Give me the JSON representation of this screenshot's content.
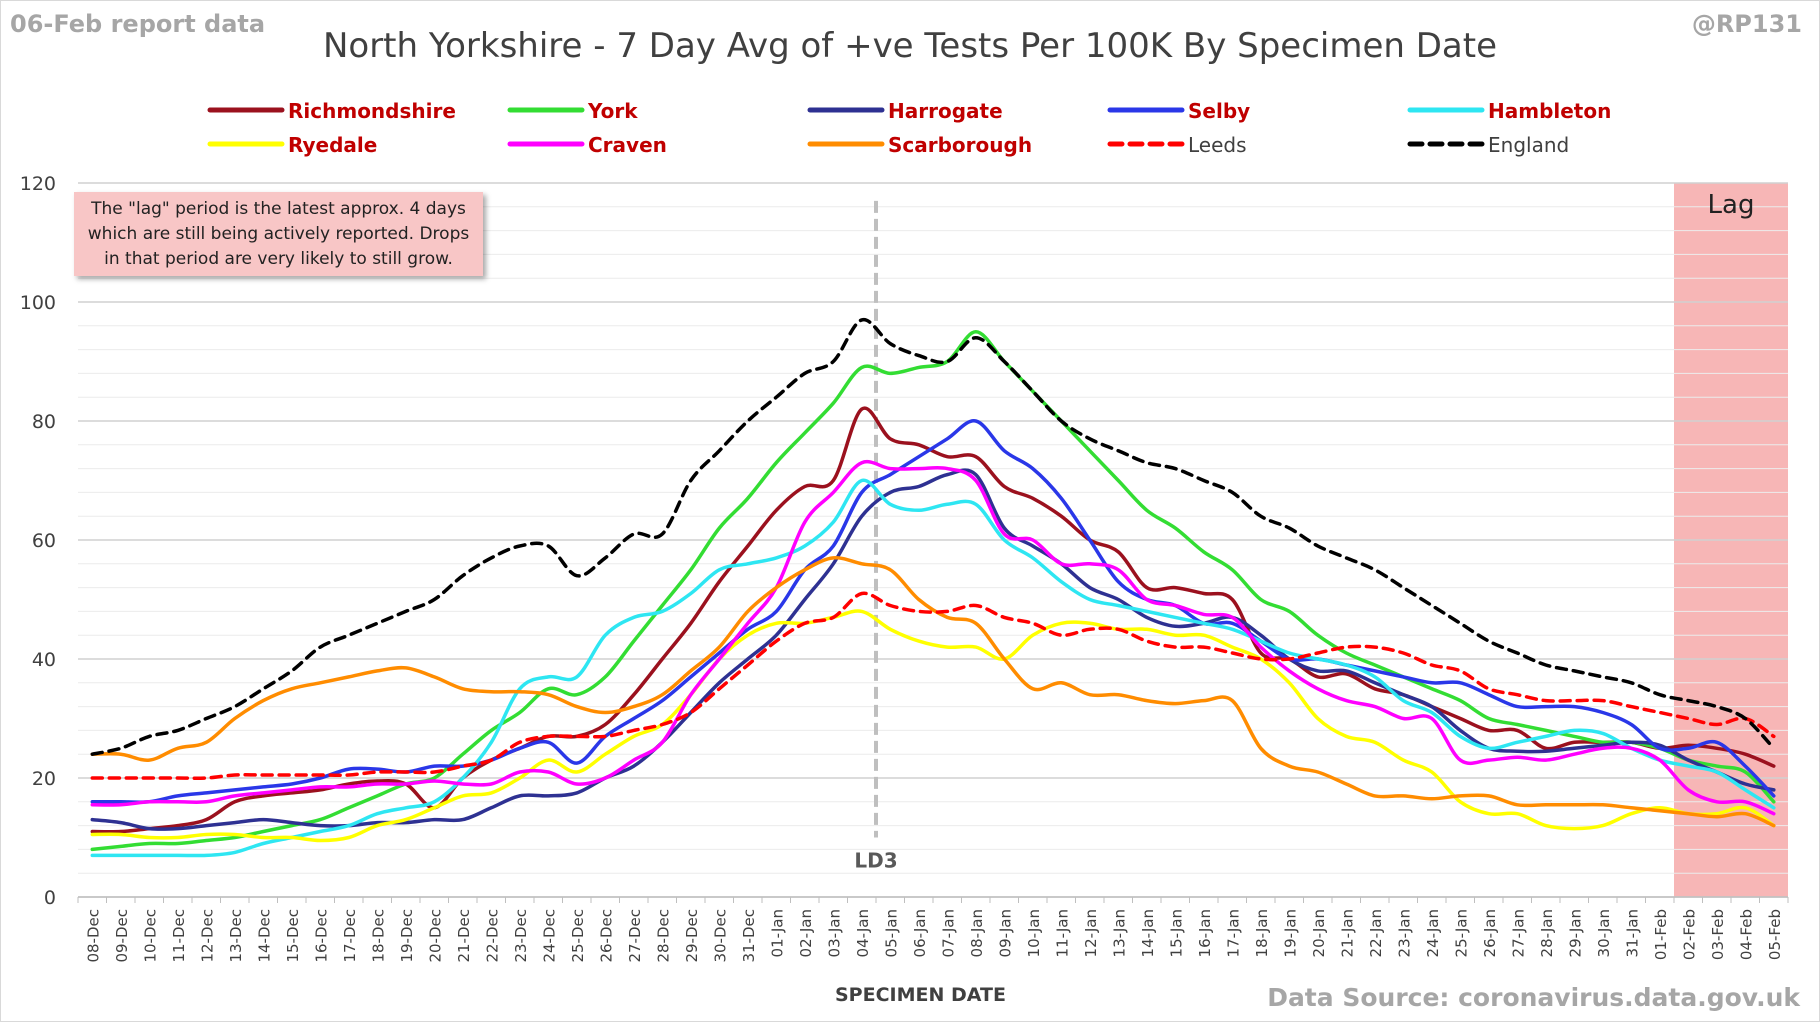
{
  "header": {
    "report_date": "06-Feb report data",
    "handle": "@RP131",
    "source": "Data Source: coronavirus.data.gov.uk"
  },
  "lag_note": "The \"lag\" period is the latest approx. 4 days which are still being actively reported. Drops in that period are very likely to still grow.",
  "colors": {
    "lag_shade": "#f7b6b6",
    "ld3_line": "#bfbfbf",
    "legend_red": "#c00000"
  },
  "chart_data": {
    "type": "line",
    "title": "North Yorkshire - 7 Day Avg of +ve Tests Per 100K By Specimen Date",
    "xlabel": "SPECIMEN DATE",
    "ylabel": "",
    "ylim": [
      0,
      120
    ],
    "yticks": [
      0,
      20,
      40,
      60,
      80,
      100,
      120
    ],
    "grid": true,
    "legend_position": "top",
    "categories": [
      "08-Dec",
      "09-Dec",
      "10-Dec",
      "11-Dec",
      "12-Dec",
      "13-Dec",
      "14-Dec",
      "15-Dec",
      "16-Dec",
      "17-Dec",
      "18-Dec",
      "19-Dec",
      "20-Dec",
      "21-Dec",
      "22-Dec",
      "23-Dec",
      "24-Dec",
      "25-Dec",
      "26-Dec",
      "27-Dec",
      "28-Dec",
      "29-Dec",
      "30-Dec",
      "31-Dec",
      "01-Jan",
      "02-Jan",
      "03-Jan",
      "04-Jan",
      "05-Jan",
      "06-Jan",
      "07-Jan",
      "08-Jan",
      "09-Jan",
      "10-Jan",
      "11-Jan",
      "12-Jan",
      "13-Jan",
      "14-Jan",
      "15-Jan",
      "16-Jan",
      "17-Jan",
      "18-Jan",
      "19-Jan",
      "20-Jan",
      "21-Jan",
      "22-Jan",
      "23-Jan",
      "24-Jan",
      "25-Jan",
      "26-Jan",
      "27-Jan",
      "28-Jan",
      "29-Jan",
      "30-Jan",
      "31-Jan",
      "01-Feb",
      "02-Feb",
      "03-Feb",
      "04-Feb",
      "05-Feb"
    ],
    "annotations": [
      {
        "label": "LD3",
        "x": "05-Jan",
        "style": "vertical-dashed"
      },
      {
        "label": "Lag",
        "x_from": "02-Feb",
        "x_to": "05-Feb",
        "style": "shaded"
      }
    ],
    "series": [
      {
        "name": "Richmondshire",
        "color": "#9b111e",
        "dash": false,
        "values": [
          11,
          11,
          11.5,
          12,
          13,
          16,
          17,
          17.5,
          18,
          19,
          19.5,
          19,
          15,
          20,
          23,
          25,
          27,
          27,
          29,
          34,
          40,
          46,
          53,
          59,
          65,
          69,
          70,
          82,
          77,
          76,
          74,
          74,
          69,
          67,
          64,
          60,
          58,
          52,
          52,
          51,
          50,
          41,
          40,
          37,
          37.5,
          35,
          34,
          32,
          30,
          28,
          28,
          25,
          26,
          26,
          26,
          25,
          25.5,
          25,
          24,
          22
        ]
      },
      {
        "name": "York",
        "color": "#33dd33",
        "dash": false,
        "values": [
          8,
          8.5,
          9,
          9,
          9.5,
          10,
          11,
          12,
          13,
          15,
          17,
          19,
          20,
          24,
          28,
          31,
          35,
          34,
          37,
          43,
          49,
          55,
          62,
          67,
          73,
          78,
          83,
          89,
          88,
          89,
          90,
          95,
          90,
          85,
          80,
          75,
          70,
          65,
          62,
          58,
          55,
          50,
          48,
          44,
          41,
          39,
          37,
          35,
          33,
          30,
          29,
          28,
          27,
          26,
          26,
          25,
          23,
          22,
          21,
          16
        ]
      },
      {
        "name": "Harrogate",
        "color": "#2e3192",
        "dash": false,
        "values": [
          13,
          12.5,
          11.5,
          11.5,
          12,
          12.5,
          13,
          12.5,
          12,
          12,
          12.5,
          12.5,
          13,
          13,
          15,
          17,
          17,
          17.5,
          20,
          22,
          26,
          31,
          36,
          40,
          44,
          50,
          56,
          64,
          68,
          69,
          71,
          71,
          62,
          59,
          56,
          52,
          50,
          47,
          45.5,
          46,
          47,
          44,
          40,
          38,
          38,
          36,
          34,
          32,
          28,
          25,
          24.5,
          24.5,
          25,
          25.5,
          26,
          25.5,
          23,
          21,
          19,
          18
        ]
      },
      {
        "name": "Selby",
        "color": "#2a37e8",
        "dash": false,
        "values": [
          16,
          16,
          16,
          17,
          17.5,
          18,
          18.5,
          19,
          20,
          21.5,
          21.5,
          21,
          22,
          22,
          23,
          25,
          26,
          22.5,
          27,
          30,
          33,
          37,
          41,
          45,
          48,
          55,
          59,
          68,
          71,
          74,
          77,
          80,
          75,
          72,
          67,
          60,
          53,
          50,
          49,
          46,
          46,
          43,
          40,
          40,
          39,
          38,
          37,
          36,
          36,
          34,
          32,
          32,
          32,
          31,
          29,
          25,
          25,
          26,
          22,
          17
        ]
      },
      {
        "name": "Hambleton",
        "color": "#2ee6f2",
        "dash": false,
        "values": [
          7,
          7,
          7,
          7,
          7,
          7.5,
          9,
          10,
          11,
          12,
          14,
          15,
          16,
          20,
          26,
          35,
          37,
          37,
          44,
          47,
          48,
          51,
          55,
          56,
          57,
          59,
          63,
          70,
          66,
          65,
          66,
          66,
          60,
          57,
          53,
          50,
          49,
          48,
          47,
          46,
          45,
          43,
          41,
          40,
          39,
          37,
          33,
          31,
          27,
          25,
          26,
          27,
          28,
          27.5,
          25,
          23,
          22,
          21,
          18,
          15
        ]
      },
      {
        "name": "Ryedale",
        "color": "#ffff00",
        "dash": false,
        "values": [
          10.5,
          10.5,
          10,
          10,
          10.5,
          10.5,
          10,
          10,
          9.5,
          10,
          12,
          13,
          15,
          17,
          17.5,
          20,
          23,
          21,
          24,
          27,
          29,
          34,
          40,
          44,
          46,
          46,
          47,
          48,
          45,
          43,
          42,
          42,
          40,
          44,
          46,
          46,
          45,
          45,
          44,
          44,
          42,
          40,
          36,
          30,
          27,
          26,
          23,
          21,
          16,
          14,
          14,
          12,
          11.5,
          12,
          14,
          15,
          14,
          14,
          15,
          12
        ]
      },
      {
        "name": "Craven",
        "color": "#ff00ff",
        "dash": false,
        "values": [
          15.5,
          15.5,
          16,
          16,
          16,
          17,
          17.5,
          18,
          18.5,
          18.5,
          19,
          19,
          19.5,
          19,
          19,
          21,
          21,
          19,
          20,
          23,
          26,
          34,
          40,
          46,
          52,
          63,
          68,
          73,
          72,
          72,
          72,
          70,
          61,
          60,
          56,
          56,
          55,
          50,
          49,
          47.5,
          47,
          42,
          38,
          35,
          33,
          32,
          30,
          30,
          23,
          23,
          23.5,
          23,
          24,
          25,
          25,
          23,
          18,
          16,
          16,
          14
        ]
      },
      {
        "name": "Scarborough",
        "color": "#ff8c00",
        "dash": false,
        "values": [
          24,
          24,
          23,
          25,
          26,
          30,
          33,
          35,
          36,
          37,
          38,
          38.5,
          37,
          35,
          34.5,
          34.5,
          34,
          32,
          31,
          32,
          34,
          38,
          42,
          48,
          52,
          55,
          57,
          56,
          55,
          50,
          47,
          46,
          40,
          35,
          36,
          34,
          34,
          33,
          32.5,
          33,
          33,
          25,
          22,
          21,
          19,
          17,
          17,
          16.5,
          17,
          17,
          15.5,
          15.5,
          15.5,
          15.5,
          15,
          14.5,
          14,
          13.5,
          14,
          12
        ]
      },
      {
        "name": "Leeds",
        "color": "#ff0000",
        "dash": true,
        "values": [
          20,
          20,
          20,
          20,
          20,
          20.5,
          20.5,
          20.5,
          20.5,
          20.5,
          21,
          21,
          21,
          22,
          23,
          26,
          27,
          27,
          27,
          28,
          29,
          31,
          35,
          39,
          43,
          46,
          47,
          51,
          49,
          48,
          48,
          49,
          47,
          46,
          44,
          45,
          45,
          43,
          42,
          42,
          41,
          40,
          40,
          41,
          42,
          42,
          41,
          39,
          38,
          35,
          34,
          33,
          33,
          33,
          32,
          31,
          30,
          29,
          30,
          27
        ]
      },
      {
        "name": "England",
        "color": "#000000",
        "dash": true,
        "values": [
          24,
          25,
          27,
          28,
          30,
          32,
          35,
          38,
          42,
          44,
          46,
          48,
          50,
          54,
          57,
          59,
          59,
          54,
          57,
          61,
          61,
          70,
          75,
          80,
          84,
          88,
          90,
          97,
          93,
          91,
          90,
          94,
          90,
          85,
          80,
          77,
          75,
          73,
          72,
          70,
          68,
          64,
          62,
          59,
          57,
          55,
          52,
          49,
          46,
          43,
          41,
          39,
          38,
          37,
          36,
          34,
          33,
          32,
          30,
          25
        ]
      }
    ]
  }
}
